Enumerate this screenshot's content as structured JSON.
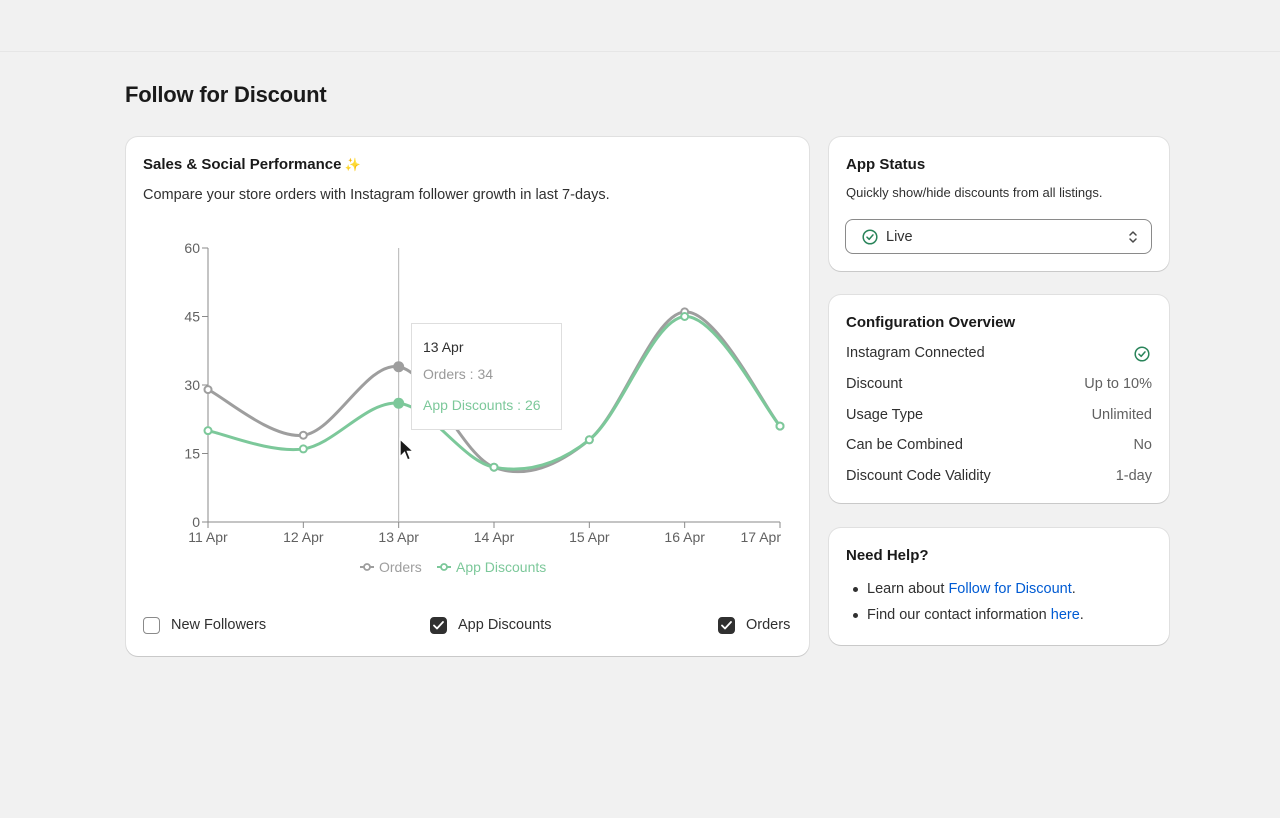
{
  "page": {
    "title": "Follow for Discount"
  },
  "performance": {
    "title": "Sales & Social Performance",
    "sparkle_icon": "sparkle-icon",
    "description": "Compare your store orders with Instagram follower growth in last 7-days.",
    "tooltip": {
      "date": "13 Apr",
      "orders_text": "Orders : 34",
      "discounts_text": "App Discounts : 26"
    },
    "checkboxes": [
      {
        "label": "New Followers",
        "checked": false
      },
      {
        "label": "App Discounts",
        "checked": true
      },
      {
        "label": "Orders",
        "checked": true
      }
    ]
  },
  "chart_data": {
    "type": "line",
    "x": [
      "11 Apr",
      "12 Apr",
      "13 Apr",
      "14 Apr",
      "15 Apr",
      "16 Apr",
      "17 Apr"
    ],
    "yticks": [
      "0",
      "15",
      "30",
      "45",
      "60"
    ],
    "ylim": [
      0,
      60
    ],
    "grid": false,
    "legend_position": "bottom-center",
    "hover_index": 2,
    "series": [
      {
        "name": "Orders",
        "color": "#9e9e9e",
        "values": [
          29,
          19,
          34,
          12,
          18,
          46,
          21
        ]
      },
      {
        "name": "App Discounts",
        "color": "#7cc89a",
        "values": [
          20,
          16,
          26,
          12,
          18,
          45,
          21
        ]
      }
    ]
  },
  "status": {
    "title": "App Status",
    "description": "Quickly show/hide discounts from all listings.",
    "selected": "Live",
    "selected_icon": "check-circle-icon",
    "accent": "#29845a"
  },
  "config": {
    "title": "Configuration Overview",
    "rows": [
      {
        "label": "Instagram Connected",
        "value": "",
        "icon": "check-circle-icon"
      },
      {
        "label": "Discount",
        "value": "Up to 10%"
      },
      {
        "label": "Usage Type",
        "value": "Unlimited"
      },
      {
        "label": "Can be Combined",
        "value": "No"
      },
      {
        "label": "Discount Code Validity",
        "value": "1-day"
      }
    ]
  },
  "help": {
    "title": "Need Help?",
    "items": [
      {
        "prefix": "Learn about ",
        "link": "Follow for Discount",
        "suffix": "."
      },
      {
        "prefix": "Find our contact information ",
        "link": "here",
        "suffix": "."
      }
    ]
  }
}
